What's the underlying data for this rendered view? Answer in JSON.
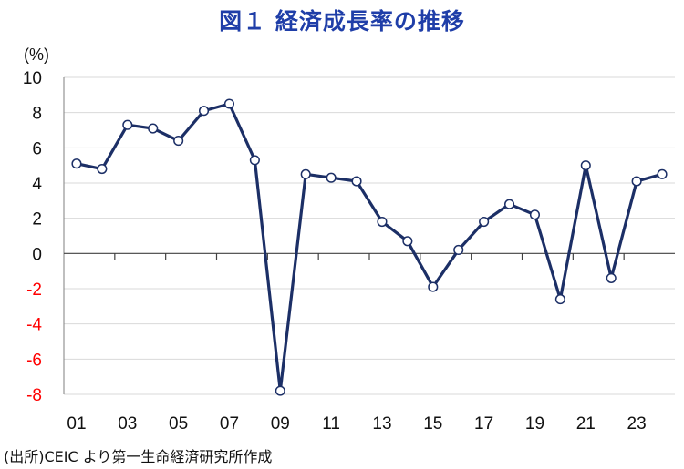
{
  "title": "図１ 経済成長率の推移",
  "unit_label": "(%)",
  "source_note": "(出所)CEIC より第一生命経済研究所作成",
  "colors": {
    "line": "#1c2f66",
    "marker_fill": "#ffffff",
    "negative_tick": "#ff0000",
    "grid": "#d9d9d9",
    "axis": "#7f7f7f"
  },
  "chart_data": {
    "type": "line",
    "title": "図１ 経済成長率の推移",
    "xlabel": "",
    "ylabel": "(%)",
    "ylim": [
      -8,
      10
    ],
    "yticks": [
      10,
      8,
      6,
      4,
      2,
      0,
      -2,
      -4,
      -6,
      -8
    ],
    "grid": true,
    "x": [
      "01",
      "02",
      "03",
      "04",
      "05",
      "06",
      "07",
      "08",
      "09",
      "10",
      "11",
      "12",
      "13",
      "14",
      "15",
      "16",
      "17",
      "18",
      "19",
      "20",
      "21",
      "22",
      "23",
      "24"
    ],
    "x_tick_labels": [
      "01",
      "03",
      "05",
      "07",
      "09",
      "11",
      "13",
      "15",
      "17",
      "19",
      "21",
      "23"
    ],
    "series": [
      {
        "name": "",
        "values": [
          5.1,
          4.8,
          7.3,
          7.1,
          6.4,
          8.1,
          8.5,
          5.3,
          -7.8,
          4.5,
          4.3,
          4.1,
          1.8,
          0.7,
          -1.9,
          0.2,
          1.8,
          2.8,
          2.2,
          -2.6,
          5.0,
          -1.4,
          4.1,
          4.5
        ]
      }
    ]
  }
}
